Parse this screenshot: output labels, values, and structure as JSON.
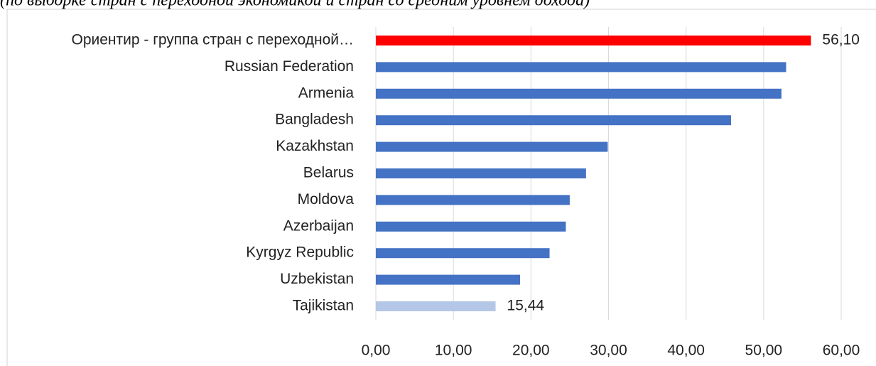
{
  "chart_data": {
    "type": "bar",
    "orientation": "horizontal",
    "subtitle": "(по выборке стран с переходной экономикой и стран со средним уровнем дохода)",
    "categories": [
      "Ориентир - группа стран с переходной…",
      "Russian Federation",
      "Armenia",
      "Bangladesh",
      "Kazakhstan",
      "Belarus",
      "Moldova",
      "Azerbaijan",
      "Kyrgyz Republic",
      "Uzbekistan",
      "Tajikistan"
    ],
    "values": [
      56.1,
      52.9,
      52.3,
      45.8,
      29.9,
      27.1,
      25.0,
      24.5,
      22.4,
      18.6,
      15.44
    ],
    "value_labels": [
      "56,10",
      null,
      null,
      null,
      null,
      null,
      null,
      null,
      null,
      null,
      "15,44"
    ],
    "colors": [
      "#ff0000",
      "#4472c4",
      "#4472c4",
      "#4472c4",
      "#4472c4",
      "#4472c4",
      "#4472c4",
      "#4472c4",
      "#4472c4",
      "#4472c4",
      "#b4c7e7"
    ],
    "xlim": [
      0,
      60
    ],
    "xticks": [
      {
        "value": 0,
        "label": "0,00"
      },
      {
        "value": 10,
        "label": "10,00"
      },
      {
        "value": 20,
        "label": "20,00"
      },
      {
        "value": 30,
        "label": "30,00"
      },
      {
        "value": 40,
        "label": "40,00"
      },
      {
        "value": 50,
        "label": "50,00"
      },
      {
        "value": 60,
        "label": "60,00"
      }
    ],
    "grid": true
  }
}
